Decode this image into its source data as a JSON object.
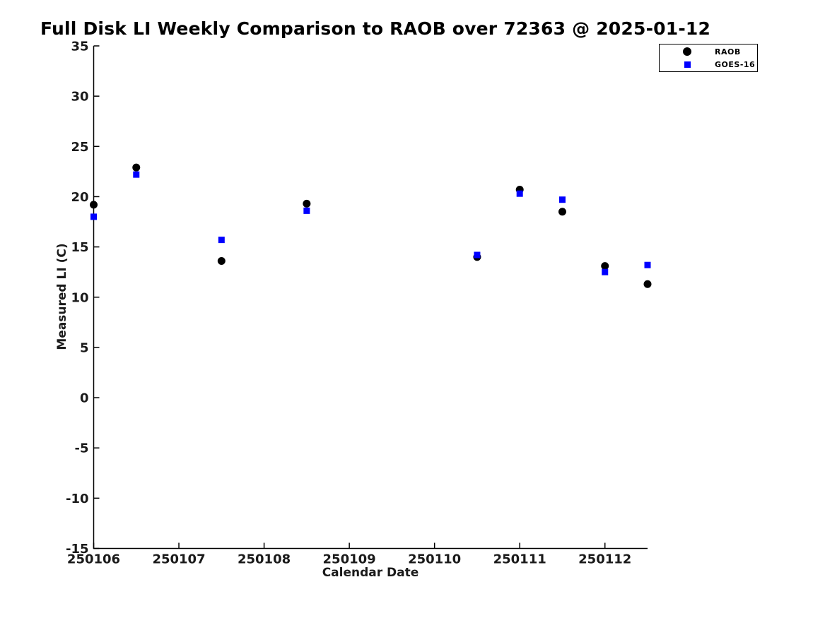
{
  "chart_data": {
    "type": "scatter",
    "title": "Full Disk LI Weekly Comparison to RAOB over 72363 @ 2025-01-12",
    "xlabel": "Calendar Date",
    "ylabel": "Measured LI (C)",
    "xlim": [
      250106,
      250112.5
    ],
    "ylim": [
      -15,
      35
    ],
    "x_ticks": [
      250106,
      250107,
      250108,
      250109,
      250110,
      250111,
      250112
    ],
    "y_ticks": [
      -15,
      -10,
      -5,
      0,
      5,
      10,
      15,
      20,
      25,
      30,
      35
    ],
    "grid": false,
    "legend_position": "top-right-outside",
    "series": [
      {
        "name": "RAOB",
        "marker": "circle",
        "color": "#000000",
        "x": [
          250106,
          250106.5,
          250107.5,
          250108.5,
          250110.5,
          250111,
          250111.5,
          250112,
          250112.5
        ],
        "values": [
          19.2,
          22.9,
          13.6,
          19.3,
          14.0,
          20.7,
          18.5,
          13.1,
          11.3
        ]
      },
      {
        "name": "GOES-16",
        "marker": "square",
        "color": "#0000FF",
        "x": [
          250106,
          250106.5,
          250107.5,
          250108.5,
          250110.5,
          250111,
          250111.5,
          250112,
          250112.5
        ],
        "values": [
          18.0,
          22.2,
          15.7,
          18.6,
          14.2,
          20.3,
          19.7,
          12.5,
          13.2
        ]
      }
    ]
  }
}
